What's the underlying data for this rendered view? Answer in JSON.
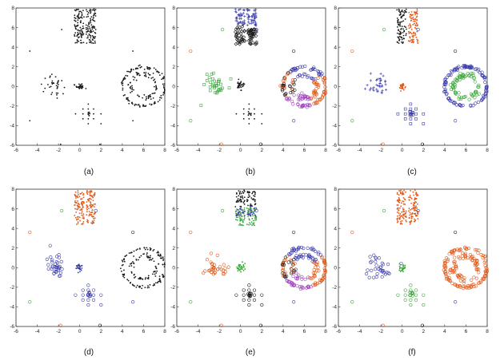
{
  "colors": {
    "black": "#1a1a1a",
    "blue": "#3a3aaa",
    "orange": "#e05a1c",
    "green": "#3aa63a",
    "purple": "#a040c0",
    "axis": "#333333"
  },
  "chart_data": [
    {
      "type": "scatter",
      "label": "(a)",
      "xlim": [
        -6,
        8
      ],
      "ylim": [
        -6,
        8
      ],
      "xticks": [
        "-6",
        "-4",
        "-2",
        "0",
        "2",
        "4",
        "6",
        "8"
      ],
      "yticks": [
        "-6",
        "-4",
        "-2",
        "0",
        "2",
        "4",
        "6",
        "8"
      ],
      "grid": false,
      "clusters": [
        {
          "shape": "vbars",
          "color": "black",
          "marker": "dot"
        },
        {
          "shape": "left-blob",
          "color": "black",
          "marker": "dot"
        },
        {
          "shape": "center-blob",
          "color": "black",
          "marker": "dot"
        },
        {
          "shape": "cross",
          "color": "black",
          "marker": "dot"
        },
        {
          "shape": "rings",
          "color": "black",
          "marker": "dot"
        },
        {
          "shape": "outliers",
          "color": "black",
          "marker": "dot"
        }
      ]
    },
    {
      "type": "scatter",
      "label": "(b)",
      "xlim": [
        -6,
        8
      ],
      "ylim": [
        -6,
        8
      ],
      "xticks": [
        "-6",
        "-4",
        "-2",
        "0",
        "2",
        "4",
        "6",
        "8"
      ],
      "yticks": [
        "-6",
        "-4",
        "-2",
        "0",
        "2",
        "4",
        "6",
        "8"
      ],
      "grid": false,
      "clusters": [
        {
          "shape": "vbars-top",
          "color": "blue",
          "marker": "plus"
        },
        {
          "shape": "vbars-bottom",
          "color": "black",
          "marker": "diamond"
        },
        {
          "shape": "left-blob",
          "color": "green",
          "marker": "square"
        },
        {
          "shape": "center-blob",
          "color": "black",
          "marker": "dot"
        },
        {
          "shape": "cross",
          "color": "black",
          "marker": "dot"
        },
        {
          "shape": "rings-mixed",
          "color": "mixed",
          "marker": "circle"
        },
        {
          "shape": "outliers",
          "color": "mixed",
          "marker": "circle"
        }
      ]
    },
    {
      "type": "scatter",
      "label": "(c)",
      "xlim": [
        -6,
        8
      ],
      "ylim": [
        -6,
        8
      ],
      "xticks": [
        "-6",
        "-4",
        "-2",
        "0",
        "2",
        "4",
        "6",
        "8"
      ],
      "yticks": [
        "-6",
        "-4",
        "-2",
        "0",
        "2",
        "4",
        "6",
        "8"
      ],
      "grid": false,
      "clusters": [
        {
          "shape": "vbar-left",
          "color": "black",
          "marker": "dot"
        },
        {
          "shape": "vbar-right",
          "color": "orange",
          "marker": "dot"
        },
        {
          "shape": "left-blob",
          "color": "blue",
          "marker": "plus"
        },
        {
          "shape": "center-blob",
          "color": "orange",
          "marker": "dot"
        },
        {
          "shape": "cross",
          "color": "blue",
          "marker": "square"
        },
        {
          "shape": "ring-outer",
          "color": "blue",
          "marker": "circle"
        },
        {
          "shape": "ring-inner",
          "color": "green",
          "marker": "circle"
        },
        {
          "shape": "outliers",
          "color": "mixed",
          "marker": "circle"
        }
      ]
    },
    {
      "type": "scatter",
      "label": "(d)",
      "xlim": [
        -6,
        8
      ],
      "ylim": [
        -6,
        8
      ],
      "xticks": [
        "-6",
        "-4",
        "-2",
        "0",
        "2",
        "4",
        "6",
        "8"
      ],
      "yticks": [
        "-6",
        "-4",
        "-2",
        "0",
        "2",
        "4",
        "6",
        "8"
      ],
      "grid": false,
      "clusters": [
        {
          "shape": "vbars",
          "color": "orange",
          "marker": "dot"
        },
        {
          "shape": "left-blob",
          "color": "blue",
          "marker": "circle"
        },
        {
          "shape": "center-blob",
          "color": "blue",
          "marker": "dot"
        },
        {
          "shape": "cross",
          "color": "blue",
          "marker": "circle"
        },
        {
          "shape": "rings",
          "color": "black",
          "marker": "dot"
        },
        {
          "shape": "outliers",
          "color": "mixed",
          "marker": "circle"
        }
      ]
    },
    {
      "type": "scatter",
      "label": "(e)",
      "xlim": [
        -6,
        8
      ],
      "ylim": [
        -6,
        8
      ],
      "xticks": [
        "-6",
        "-4",
        "-2",
        "0",
        "2",
        "4",
        "6",
        "8"
      ],
      "yticks": [
        "-6",
        "-4",
        "-2",
        "0",
        "2",
        "4",
        "6",
        "8"
      ],
      "grid": false,
      "clusters": [
        {
          "shape": "vbars-top",
          "color": "black",
          "marker": "dot"
        },
        {
          "shape": "vbars-mid",
          "color": "blue",
          "marker": "dot"
        },
        {
          "shape": "vbars-bottom",
          "color": "green",
          "marker": "dot"
        },
        {
          "shape": "left-blob",
          "color": "orange",
          "marker": "circle"
        },
        {
          "shape": "center-blob",
          "color": "green",
          "marker": "dot"
        },
        {
          "shape": "cross",
          "color": "black",
          "marker": "circle"
        },
        {
          "shape": "rings-mixed",
          "color": "mixed",
          "marker": "circle"
        },
        {
          "shape": "outliers",
          "color": "mixed",
          "marker": "circle"
        }
      ]
    },
    {
      "type": "scatter",
      "label": "(f)",
      "xlim": [
        -6,
        8
      ],
      "ylim": [
        -6,
        8
      ],
      "xticks": [
        "-6",
        "-4",
        "-2",
        "0",
        "2",
        "4",
        "6",
        "8"
      ],
      "yticks": [
        "-6",
        "-4",
        "-2",
        "0",
        "2",
        "4",
        "6",
        "8"
      ],
      "grid": false,
      "clusters": [
        {
          "shape": "vbars",
          "color": "orange",
          "marker": "dot"
        },
        {
          "shape": "left-blob",
          "color": "blue",
          "marker": "circle"
        },
        {
          "shape": "center-blob",
          "color": "green",
          "marker": "dot"
        },
        {
          "shape": "cross",
          "color": "green",
          "marker": "circle"
        },
        {
          "shape": "rings",
          "color": "orange",
          "marker": "circle"
        },
        {
          "shape": "outliers",
          "color": "mixed",
          "marker": "circle"
        }
      ]
    }
  ]
}
